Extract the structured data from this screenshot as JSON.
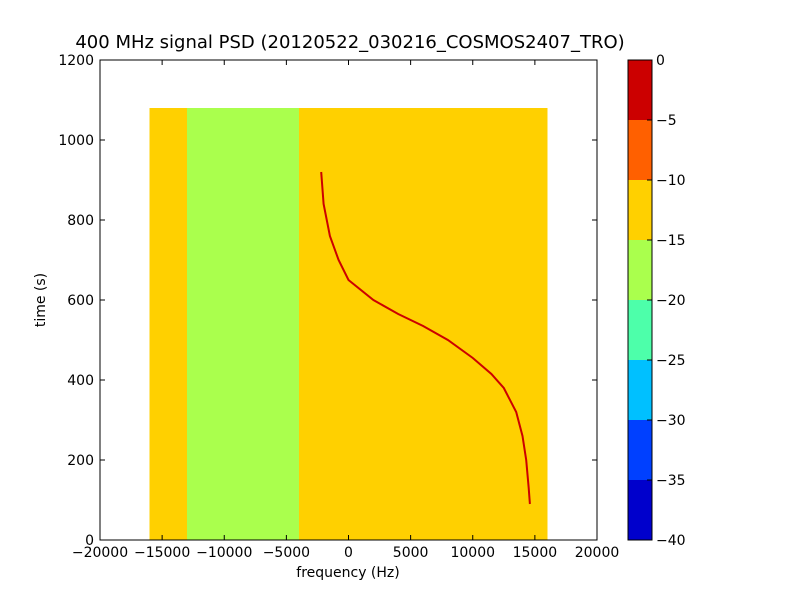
{
  "chart_data": {
    "type": "heatmap",
    "title": "400 MHz signal PSD (20120522_030216_COSMOS2407_TRO)",
    "xlabel": "frequency (Hz)",
    "ylabel": "time (s)",
    "xlim": [
      -20000,
      20000
    ],
    "ylim": [
      0,
      1200
    ],
    "xticks": [
      -20000,
      -15000,
      -10000,
      -5000,
      0,
      5000,
      10000,
      15000,
      20000
    ],
    "xtick_labels": [
      "−20000",
      "−15000",
      "−10000",
      "−5000",
      "0",
      "5000",
      "10000",
      "15000",
      "20000"
    ],
    "yticks": [
      0,
      200,
      400,
      600,
      800,
      1000,
      1200
    ],
    "ytick_labels": [
      "0",
      "200",
      "400",
      "600",
      "800",
      "1000",
      "1200"
    ],
    "grid": false,
    "data_extent": {
      "freq": [
        -16000,
        16000
      ],
      "time": [
        0,
        1080
      ]
    },
    "psd_by_frequency_band": [
      {
        "freq": [
          -16000,
          -13000
        ],
        "psd": -14
      },
      {
        "freq": [
          -13000,
          -4000
        ],
        "psd": -17
      },
      {
        "freq": [
          -4000,
          0
        ],
        "psd": -15
      },
      {
        "freq": [
          0,
          7000
        ],
        "psd": -13
      },
      {
        "freq": [
          7000,
          16000
        ],
        "psd": -11
      },
      {
        "freq": [
          15000,
          16000
        ],
        "psd": -13
      }
    ],
    "signal_trace": {
      "psd": -2,
      "points": [
        [
          -2200,
          920
        ],
        [
          -2000,
          840
        ],
        [
          -1500,
          760
        ],
        [
          -800,
          700
        ],
        [
          0,
          650
        ],
        [
          2000,
          600
        ],
        [
          4000,
          565
        ],
        [
          6000,
          535
        ],
        [
          8000,
          500
        ],
        [
          10000,
          455
        ],
        [
          11500,
          415
        ],
        [
          12500,
          380
        ],
        [
          13500,
          320
        ],
        [
          14000,
          260
        ],
        [
          14300,
          200
        ],
        [
          14500,
          130
        ],
        [
          14600,
          90
        ]
      ]
    },
    "colorbar": {
      "range": [
        -40,
        0
      ],
      "levels": [
        0,
        -5,
        -10,
        -15,
        -20,
        -25,
        -30,
        -35,
        -40
      ],
      "level_labels": [
        "0",
        "−5",
        "−10",
        "−15",
        "−20",
        "−25",
        "−30",
        "−35",
        "−40"
      ],
      "bands": [
        {
          "from": -5,
          "to": 0,
          "color": "#cc0000"
        },
        {
          "from": -10,
          "to": -5,
          "color": "#ff6000"
        },
        {
          "from": -15,
          "to": -10,
          "color": "#ffd000"
        },
        {
          "from": -20,
          "to": -15,
          "color": "#aaff4d"
        },
        {
          "from": -25,
          "to": -20,
          "color": "#4dffaa"
        },
        {
          "from": -30,
          "to": -25,
          "color": "#00c0ff"
        },
        {
          "from": -35,
          "to": -30,
          "color": "#0040ff"
        },
        {
          "from": -40,
          "to": -35,
          "color": "#0000cc"
        }
      ]
    }
  }
}
